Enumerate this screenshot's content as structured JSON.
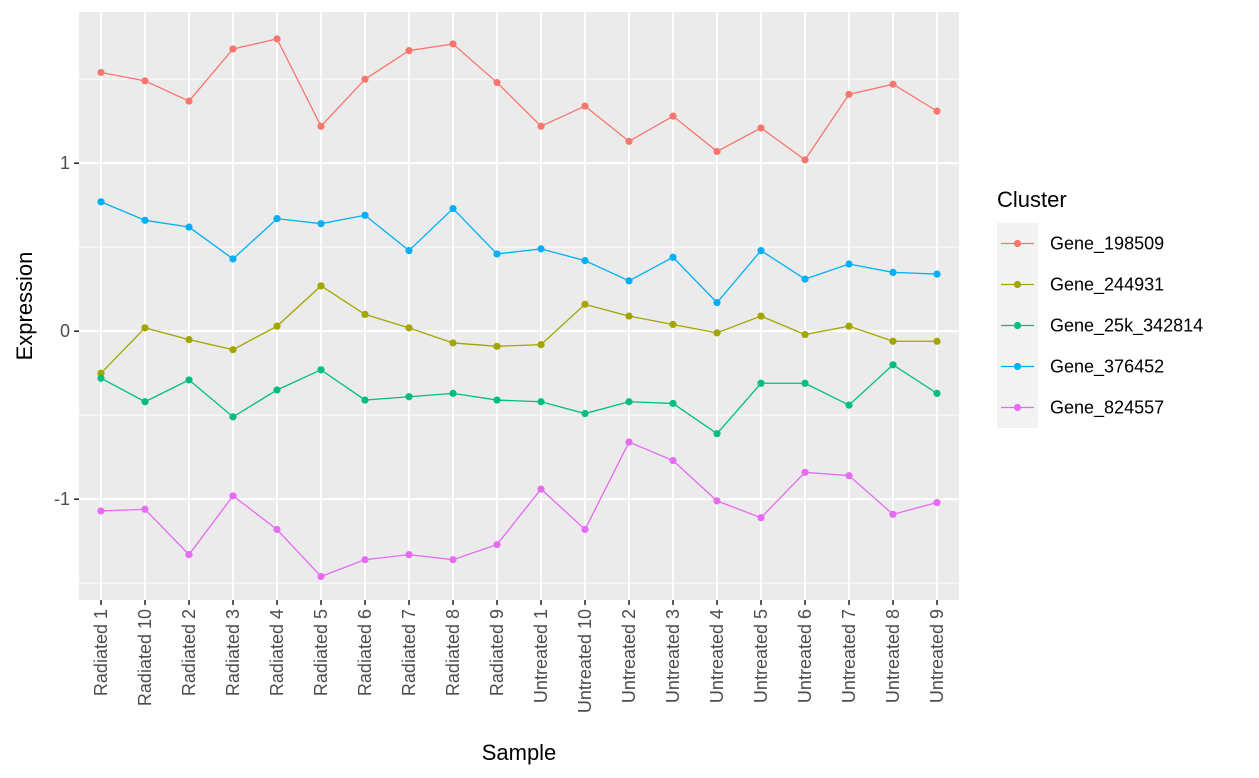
{
  "chart_data": {
    "type": "line",
    "xlabel": "Sample",
    "ylabel": "Expression",
    "ylim": [
      -1.6,
      1.9
    ],
    "yticks": [
      -1,
      0,
      1
    ],
    "ytick_labels": [
      "-1",
      "0",
      "1"
    ],
    "grid": true,
    "legend_position": "right",
    "legend_title": "Cluster",
    "categories": [
      "Radiated 1",
      "Radiated 10",
      "Radiated 2",
      "Radiated 3",
      "Radiated 4",
      "Radiated 5",
      "Radiated 6",
      "Radiated 7",
      "Radiated 8",
      "Radiated 9",
      "Untreated 1",
      "Untreated 10",
      "Untreated 2",
      "Untreated 3",
      "Untreated 4",
      "Untreated 5",
      "Untreated 6",
      "Untreated 7",
      "Untreated 8",
      "Untreated 9"
    ],
    "series": [
      {
        "name": "Gene_198509",
        "color": "#F8766D",
        "values": [
          1.54,
          1.49,
          1.37,
          1.68,
          1.74,
          1.22,
          1.5,
          1.67,
          1.71,
          1.48,
          1.22,
          1.34,
          1.13,
          1.28,
          1.07,
          1.21,
          1.02,
          1.41,
          1.47,
          1.31
        ]
      },
      {
        "name": "Gene_244931",
        "color": "#A3A500",
        "values": [
          -0.25,
          0.02,
          -0.05,
          -0.11,
          0.03,
          0.27,
          0.1,
          0.02,
          -0.07,
          -0.09,
          -0.08,
          0.16,
          0.09,
          0.04,
          -0.01,
          0.09,
          -0.02,
          0.03,
          -0.06,
          -0.06
        ]
      },
      {
        "name": "Gene_25k_342814",
        "color": "#00BF7D",
        "values": [
          -0.28,
          -0.42,
          -0.29,
          -0.51,
          -0.35,
          -0.23,
          -0.41,
          -0.39,
          -0.37,
          -0.41,
          -0.42,
          -0.49,
          -0.42,
          -0.43,
          -0.61,
          -0.31,
          -0.31,
          -0.44,
          -0.2,
          -0.37
        ]
      },
      {
        "name": "Gene_376452",
        "color": "#00B0F6",
        "values": [
          0.77,
          0.66,
          0.62,
          0.43,
          0.67,
          0.64,
          0.69,
          0.48,
          0.73,
          0.46,
          0.49,
          0.42,
          0.3,
          0.44,
          0.17,
          0.48,
          0.31,
          0.4,
          0.35,
          0.34
        ]
      },
      {
        "name": "Gene_824557",
        "color": "#E76BF3",
        "values": [
          -1.07,
          -1.06,
          -1.33,
          -0.98,
          -1.18,
          -1.46,
          -1.36,
          -1.33,
          -1.36,
          -1.27,
          -0.94,
          -1.18,
          -0.66,
          -0.77,
          -1.01,
          -1.11,
          -0.84,
          -0.86,
          -1.09,
          -1.02
        ]
      }
    ]
  }
}
